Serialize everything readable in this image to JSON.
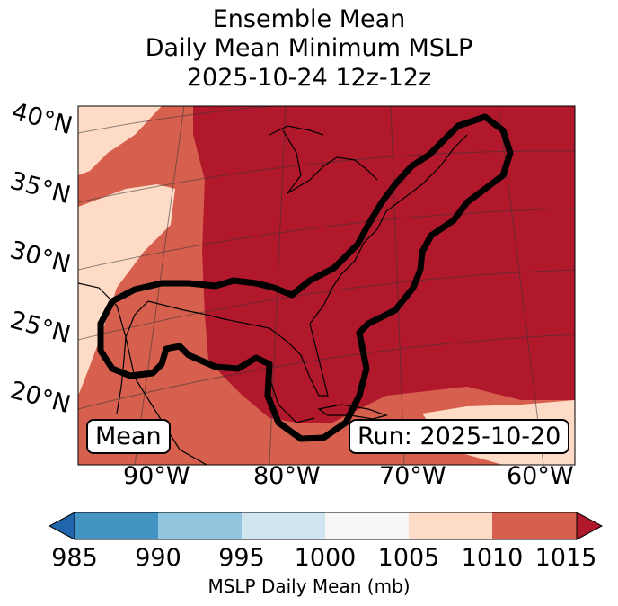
{
  "title": {
    "line1": "Ensemble Mean",
    "line2": "Daily Mean Minimum MSLP",
    "line3": "2025-10-24 12z-12z"
  },
  "map": {
    "lat_labels": [
      "40°N",
      "35°N",
      "30°N",
      "25°N",
      "20°N"
    ],
    "lon_labels": [
      "90°W",
      "80°W",
      "70°W",
      "60°W"
    ],
    "mean_label": "Mean",
    "run_label": "Run: 2025-10-20"
  },
  "colorbar": {
    "label": "MSLP Daily Mean (mb)",
    "ticks": [
      "985",
      "990",
      "995",
      "1000",
      "1005",
      "1010",
      "1015"
    ],
    "colors": [
      "#2166ac",
      "#4393c3",
      "#92c5de",
      "#d1e5f0",
      "#f7f7f7",
      "#fddbc7",
      "#d6604d",
      "#b2182b"
    ]
  }
}
